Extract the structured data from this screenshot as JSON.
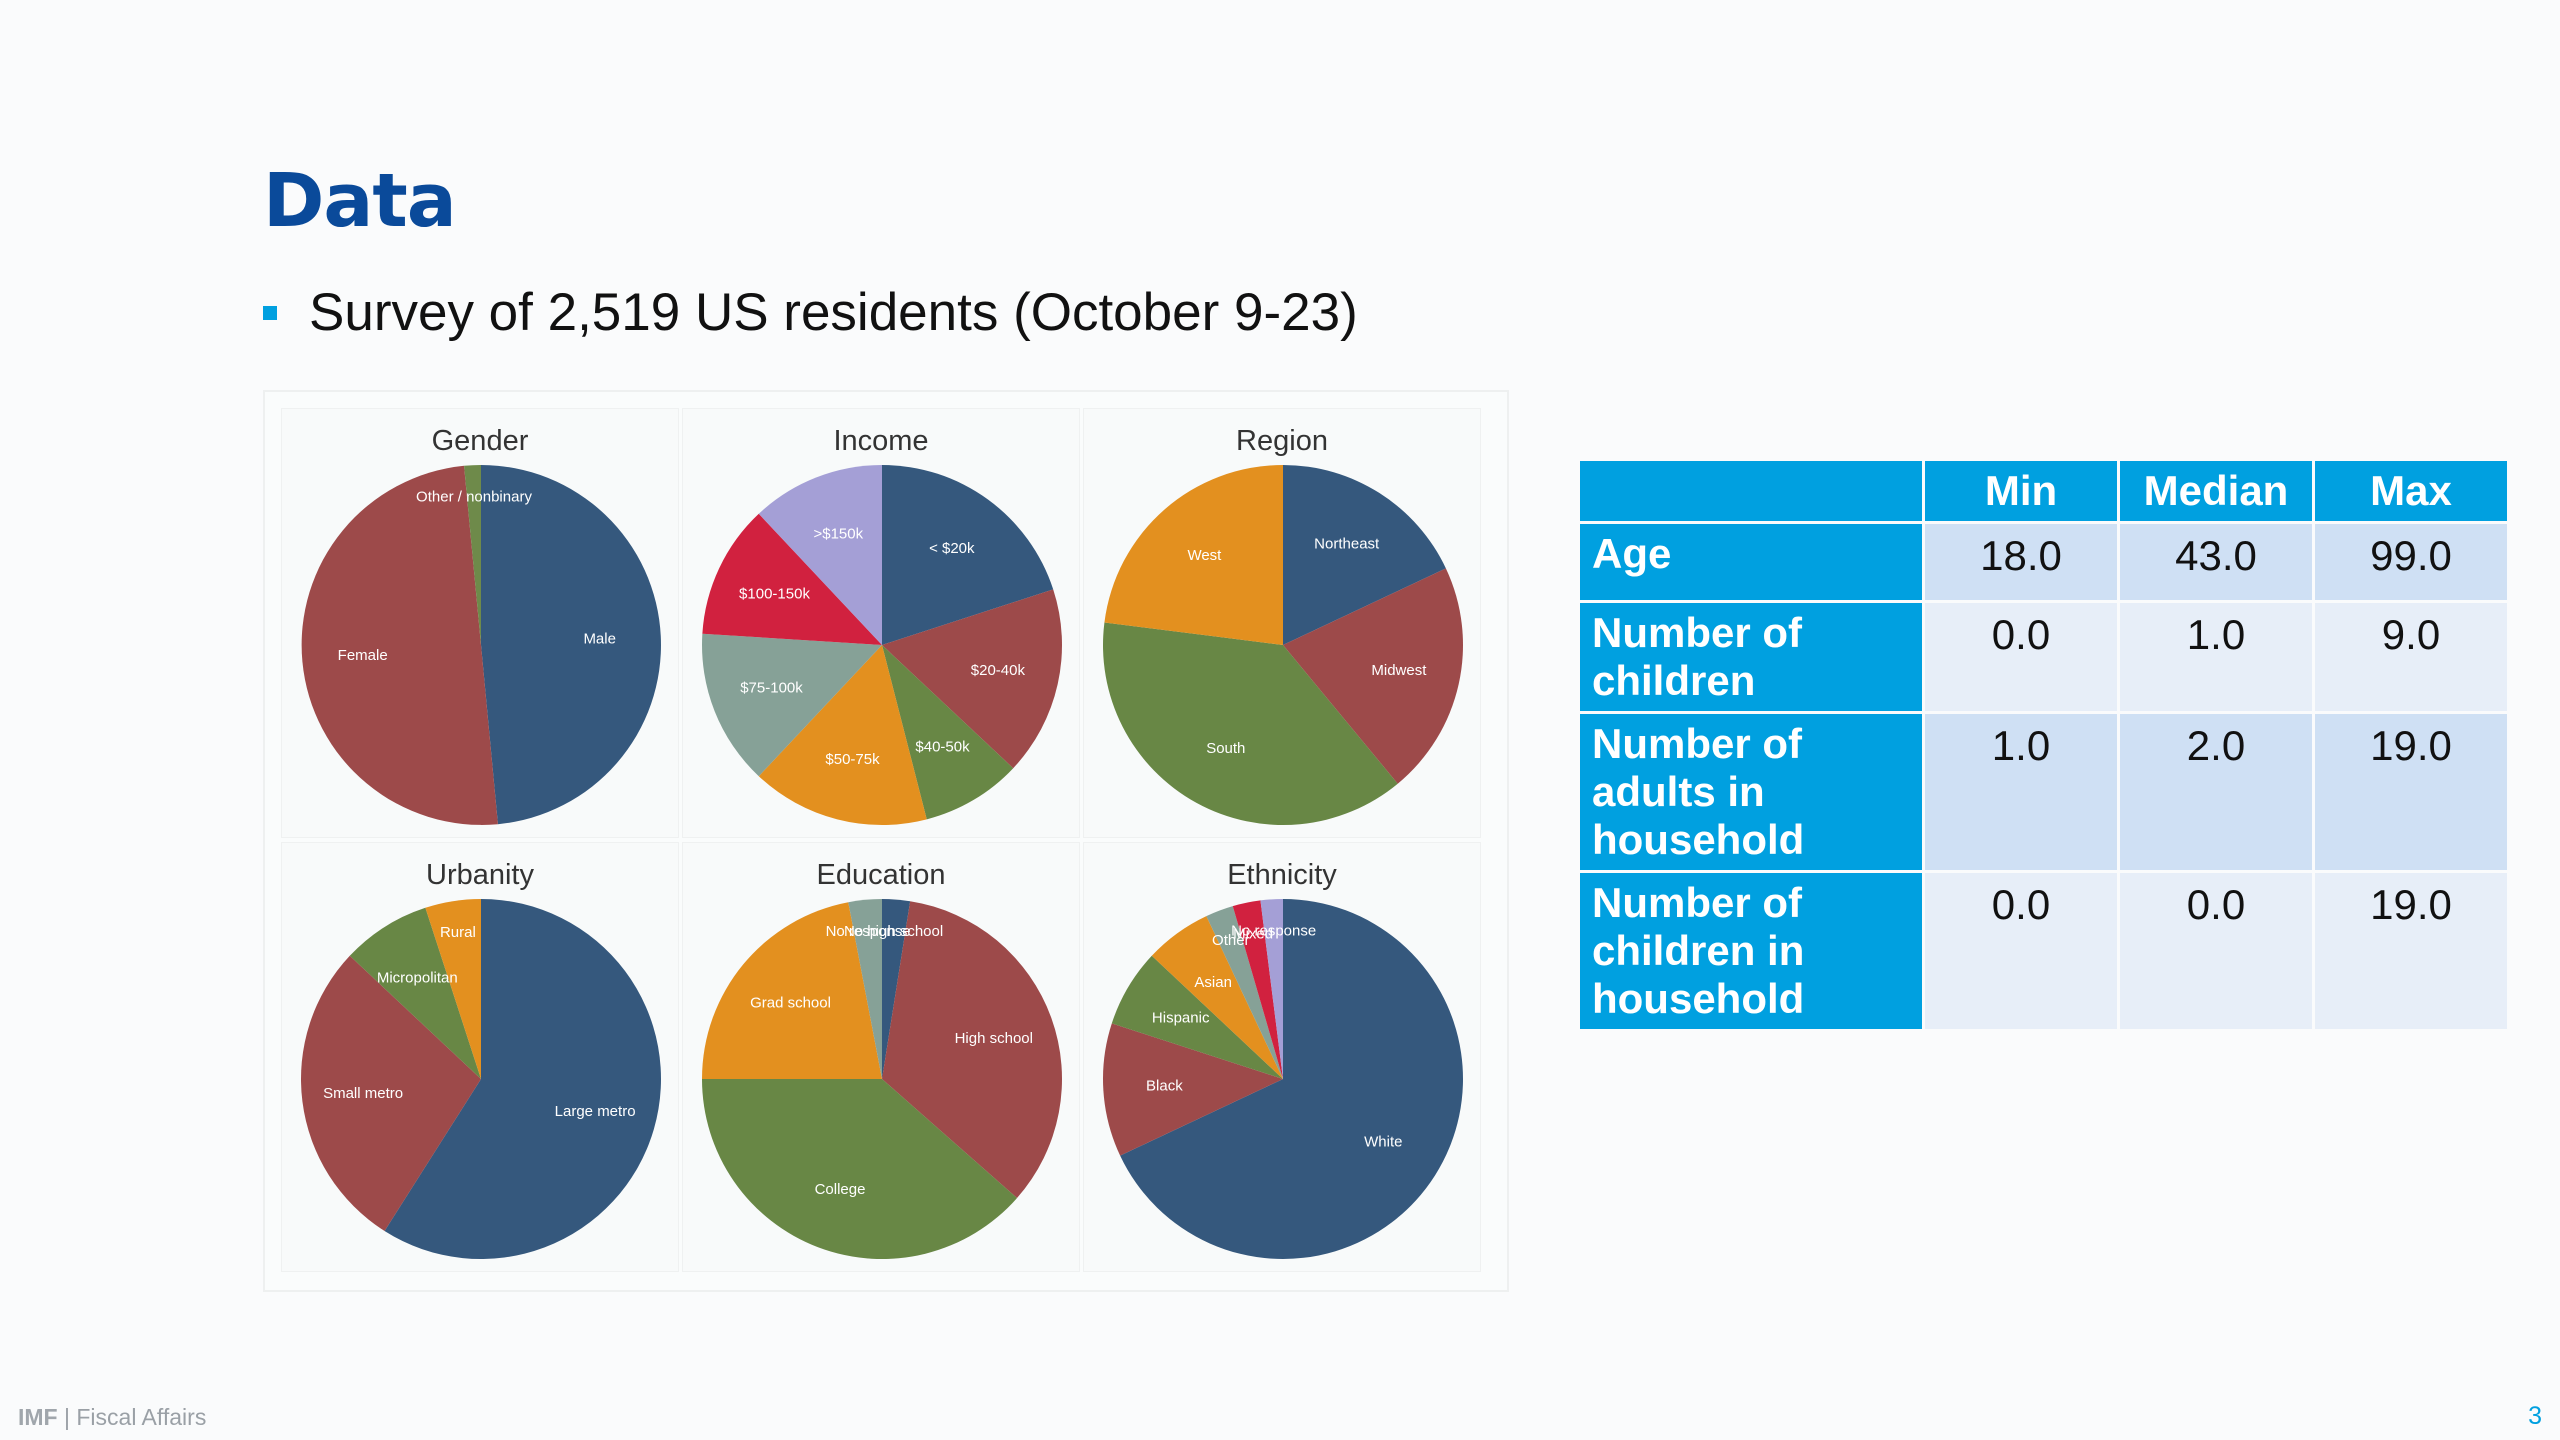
{
  "slide": {
    "title": "Data",
    "bullet": "Survey of 2,519 US residents (October 9-23)"
  },
  "chart_data": [
    {
      "type": "pie",
      "title": "Gender",
      "categories": [
        "Male",
        "Female",
        "Other / nonbinary"
      ],
      "values": [
        48.5,
        50.0,
        1.5
      ],
      "colors": [
        "#35587d",
        "#9d4a4a",
        "#6e8a4a"
      ]
    },
    {
      "type": "pie",
      "title": "Income",
      "categories": [
        "< $20k",
        "$20-40k",
        "$40-50k",
        "$50-75k",
        "$75-100k",
        "$100-150k",
        ">$150k"
      ],
      "values": [
        20,
        17,
        9,
        16,
        14,
        12,
        12
      ],
      "colors": [
        "#35587d",
        "#9d4a4a",
        "#688745",
        "#e3901f",
        "#86a197",
        "#d1213f",
        "#a49fd6"
      ]
    },
    {
      "type": "pie",
      "title": "Region",
      "categories": [
        "Northeast",
        "Midwest",
        "South",
        "West"
      ],
      "values": [
        18,
        21,
        38,
        23
      ],
      "colors": [
        "#35587d",
        "#9d4a4a",
        "#688745",
        "#e3901f"
      ]
    },
    {
      "type": "pie",
      "title": "Urbanity",
      "categories": [
        "Large metro",
        "Small metro",
        "Micropolitan",
        "Rural"
      ],
      "values": [
        59,
        28,
        8,
        5
      ],
      "colors": [
        "#35587d",
        "#9d4a4a",
        "#688745",
        "#e3901f"
      ]
    },
    {
      "type": "pie",
      "title": "Education",
      "categories": [
        "No high school",
        "High school",
        "College",
        "Grad school",
        "No response"
      ],
      "values": [
        2.5,
        34,
        38.5,
        22,
        3
      ],
      "colors": [
        "#35587d",
        "#9d4a4a",
        "#688745",
        "#e3901f",
        "#86a197"
      ]
    },
    {
      "type": "pie",
      "title": "Ethnicity",
      "categories": [
        "White",
        "Black",
        "Hispanic",
        "Asian",
        "Other",
        "Mixed",
        "No response"
      ],
      "values": [
        68,
        12,
        7,
        6,
        2.5,
        2.5,
        2
      ],
      "colors": [
        "#35587d",
        "#9d4a4a",
        "#688745",
        "#e3901f",
        "#86a197",
        "#d1213f",
        "#a49fd6"
      ]
    }
  ],
  "table": {
    "headers": [
      "",
      "Min",
      "Median",
      "Max"
    ],
    "rows": [
      {
        "label": "Age",
        "values": [
          "18.0",
          "43.0",
          "99.0"
        ]
      },
      {
        "label": "Number of children",
        "values": [
          "0.0",
          "1.0",
          "9.0"
        ]
      },
      {
        "label": "Number of adults in household",
        "values": [
          "1.0",
          "2.0",
          "19.0"
        ]
      },
      {
        "label": "Number of children in household",
        "values": [
          "0.0",
          "0.0",
          "19.0"
        ]
      }
    ]
  },
  "footer": {
    "org": "IMF",
    "separator": " | ",
    "department": "Fiscal Affairs",
    "page": "3"
  }
}
